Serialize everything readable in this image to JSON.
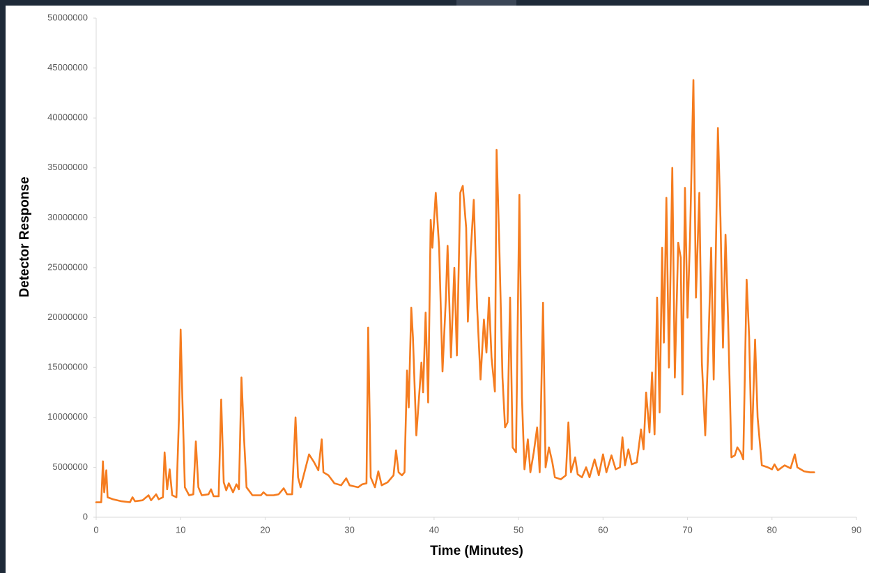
{
  "chart_data": {
    "type": "line",
    "x_label": "Time (Minutes)",
    "y_label": "Detector Response",
    "color": "#f57c1f",
    "xlim": [
      0,
      90
    ],
    "xticks": [
      0,
      10,
      20,
      30,
      40,
      50,
      60,
      70,
      80,
      90
    ],
    "ylim": [
      0,
      50000000
    ],
    "yticks": [
      0,
      5000000,
      10000000,
      15000000,
      20000000,
      25000000,
      30000000,
      35000000,
      40000000,
      45000000,
      50000000
    ],
    "x": [
      0.0,
      0.6,
      0.8,
      0.95,
      1.2,
      1.35,
      2,
      3,
      4,
      4.3,
      4.6,
      5.5,
      6.2,
      6.5,
      7.1,
      7.4,
      7.9,
      8.1,
      8.4,
      8.7,
      9.0,
      9.5,
      9.8,
      10.0,
      10.2,
      10.5,
      11,
      11.5,
      11.8,
      12.1,
      12.5,
      13.3,
      13.6,
      13.9,
      14.5,
      14.8,
      15.1,
      15.4,
      15.7,
      16.2,
      16.6,
      16.9,
      17.2,
      17.5,
      17.8,
      18.5,
      19.5,
      19.8,
      20.2,
      21,
      21.6,
      22.2,
      22.6,
      23.2,
      23.6,
      23.9,
      24.2,
      25.2,
      25.8,
      26.3,
      26.7,
      26.9,
      27.5,
      28.2,
      29,
      29.6,
      30,
      31,
      31.5,
      32,
      32.2,
      32.5,
      33,
      33.4,
      33.8,
      34.5,
      35.2,
      35.5,
      35.8,
      36.2,
      36.5,
      36.8,
      37.0,
      37.3,
      37.5,
      37.9,
      38.3,
      38.5,
      38.7,
      39.0,
      39.3,
      39.6,
      39.8,
      40.2,
      40.6,
      41.0,
      41.4,
      41.6,
      42.0,
      42.4,
      42.7,
      43.1,
      43.4,
      43.8,
      44.0,
      44.3,
      44.7,
      45.1,
      45.5,
      45.9,
      46.2,
      46.5,
      46.8,
      47.2,
      47.4,
      47.7,
      48.1,
      48.4,
      48.7,
      49.0,
      49.3,
      49.7,
      50.1,
      50.4,
      50.7,
      51.1,
      51.4,
      51.8,
      52.2,
      52.5,
      52.9,
      53.2,
      53.6,
      54.0,
      54.3,
      55,
      55.6,
      55.9,
      56.2,
      56.7,
      57,
      57.5,
      58,
      58.4,
      59,
      59.5,
      60,
      60.4,
      61,
      61.5,
      62,
      62.3,
      62.6,
      63,
      63.4,
      64,
      64.5,
      64.8,
      65.1,
      65.5,
      65.8,
      66.1,
      66.4,
      66.7,
      67.0,
      67.2,
      67.5,
      67.8,
      68.2,
      68.5,
      68.9,
      69.2,
      69.4,
      69.7,
      70.0,
      70.3,
      70.7,
      71.0,
      71.4,
      71.7,
      72.1,
      72.5,
      72.8,
      73.1,
      73.6,
      73.9,
      74.2,
      74.5,
      74.8,
      75.2,
      75.6,
      75.9,
      76.3,
      76.6,
      77.0,
      77.3,
      77.6,
      78.0,
      78.3,
      78.8,
      79.5,
      80,
      80.3,
      80.7,
      81.5,
      82.2,
      82.7,
      83.0,
      83.8,
      84.5,
      85.0
    ],
    "values": [
      1500000,
      1500000,
      5600000,
      2500000,
      4700000,
      2000000,
      1800000,
      1600000,
      1500000,
      2000000,
      1600000,
      1700000,
      2200000,
      1700000,
      2300000,
      1800000,
      2000000,
      6500000,
      2800000,
      4800000,
      2200000,
      2000000,
      10000000,
      18800000,
      12000000,
      3000000,
      2200000,
      2300000,
      7600000,
      3000000,
      2200000,
      2300000,
      2800000,
      2100000,
      2100000,
      11800000,
      3500000,
      2700000,
      3400000,
      2500000,
      3300000,
      2800000,
      14000000,
      8000000,
      3000000,
      2200000,
      2200000,
      2500000,
      2200000,
      2200000,
      2300000,
      2900000,
      2300000,
      2300000,
      10000000,
      4000000,
      3000000,
      6300000,
      5500000,
      4700000,
      7800000,
      4500000,
      4200000,
      3400000,
      3200000,
      3900000,
      3200000,
      3000000,
      3300000,
      3400000,
      19000000,
      4000000,
      3000000,
      4600000,
      3200000,
      3500000,
      4200000,
      6700000,
      4500000,
      4200000,
      4500000,
      14700000,
      11000000,
      21000000,
      18000000,
      8200000,
      13000000,
      15500000,
      12500000,
      20500000,
      11500000,
      29800000,
      27000000,
      32500000,
      27000000,
      14600000,
      22000000,
      27200000,
      16000000,
      25000000,
      16200000,
      32500000,
      33200000,
      29000000,
      19600000,
      26000000,
      31800000,
      21000000,
      13800000,
      19800000,
      16500000,
      22000000,
      16000000,
      12600000,
      36800000,
      28000000,
      14000000,
      9000000,
      9500000,
      22000000,
      7000000,
      6500000,
      32300000,
      12000000,
      4800000,
      7800000,
      4500000,
      6500000,
      9000000,
      4500000,
      21500000,
      5000000,
      7000000,
      5500000,
      4000000,
      3800000,
      4200000,
      9500000,
      4500000,
      6000000,
      4300000,
      4000000,
      5000000,
      4000000,
      5800000,
      4200000,
      6300000,
      4500000,
      6200000,
      4800000,
      5000000,
      8000000,
      5200000,
      6800000,
      5300000,
      5500000,
      8800000,
      6800000,
      12500000,
      8500000,
      14500000,
      8300000,
      22000000,
      10500000,
      27000000,
      17500000,
      32000000,
      15000000,
      35000000,
      14000000,
      27500000,
      26000000,
      12300000,
      33000000,
      20000000,
      28000000,
      43800000,
      22000000,
      32500000,
      15500000,
      8200000,
      18000000,
      27000000,
      13800000,
      39000000,
      30000000,
      17000000,
      28300000,
      20000000,
      6000000,
      6200000,
      7000000,
      6500000,
      5800000,
      23800000,
      18000000,
      6800000,
      17800000,
      10000000,
      5200000,
      5000000,
      4800000,
      5300000,
      4700000,
      5200000,
      4900000,
      6300000,
      5000000,
      4600000,
      4500000,
      4500000
    ]
  }
}
